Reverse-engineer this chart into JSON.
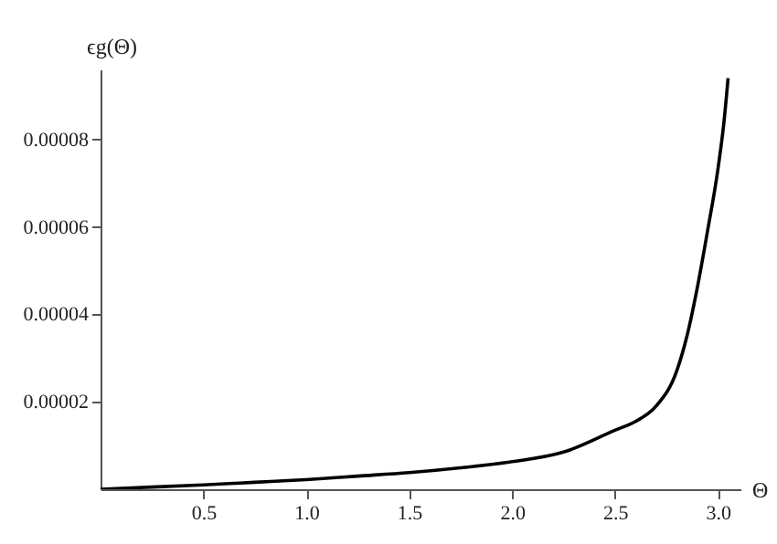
{
  "chart_data": {
    "type": "line",
    "xlabel": "Θ",
    "ylabel": "ϵg(Θ)",
    "x": [
      0,
      0.25,
      0.5,
      0.75,
      1.0,
      1.25,
      1.5,
      1.75,
      2.0,
      2.25,
      2.5,
      2.6,
      2.7,
      2.8,
      2.85,
      2.9,
      2.95,
      3.0,
      3.03,
      3.05
    ],
    "series": [
      {
        "color": "#000000",
        "values": [
          0,
          5e-07,
          1e-06,
          1.6e-06,
          2.2e-06,
          3e-06,
          3.8e-06,
          4.9e-06,
          6.3e-06,
          8.5e-06,
          1.35e-05,
          1.55e-05,
          1.9e-05,
          2.7e-05,
          3.5e-05,
          4.6e-05,
          5.9e-05,
          7.3e-05,
          8.4e-05,
          9.4e-05
        ]
      }
    ],
    "xlim": [
      0,
      3.11
    ],
    "ylim": [
      0,
      9.6e-05
    ],
    "xticks": [
      0.5,
      {
        "value": 1,
        "label": "1.0"
      },
      1.5,
      {
        "value": 2,
        "label": "2.0"
      },
      2.5,
      {
        "value": 3,
        "label": "3.0"
      }
    ],
    "yticks": [
      {
        "value": 2e-05,
        "label": "0.00002"
      },
      {
        "value": 4e-05,
        "label": "0.00004"
      },
      {
        "value": 6e-05,
        "label": "0.00006"
      },
      {
        "value": 8e-05,
        "label": "0.00008"
      }
    ],
    "grid": false,
    "line_style": "solid"
  }
}
